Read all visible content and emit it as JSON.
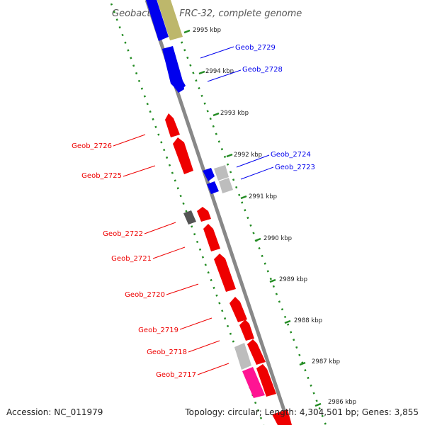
{
  "title": "Geobacter sp. FRC-32, complete genome",
  "footer": {
    "accession": "Accession: NC_011979",
    "summary": "Topology: circular; Length: 4,304,501 bp; Genes: 3,855"
  },
  "ticks": [
    "2995 kbp",
    "2994 kbp",
    "2993 kbp",
    "2992 kbp",
    "2991 kbp",
    "2990 kbp",
    "2989 kbp",
    "2988 kbp",
    "2987 kbp",
    "2986 kbp"
  ],
  "genes_forward": [
    "Geob_2729",
    "Geob_2728",
    "Geob_2724",
    "Geob_2723"
  ],
  "genes_reverse": [
    "Geob_2726",
    "Geob_2725",
    "Geob_2722",
    "Geob_2721",
    "Geob_2720",
    "Geob_2719",
    "Geob_2718",
    "Geob_2717"
  ],
  "colors": {
    "forward": "#0000ee",
    "reverse": "#ee0000",
    "olive": "#bdb76b",
    "gray": "#bdbdbd",
    "dark_gray": "#555555",
    "magenta": "#ff1493",
    "dotted_ring": "#228b22",
    "backbone": "#888888"
  }
}
